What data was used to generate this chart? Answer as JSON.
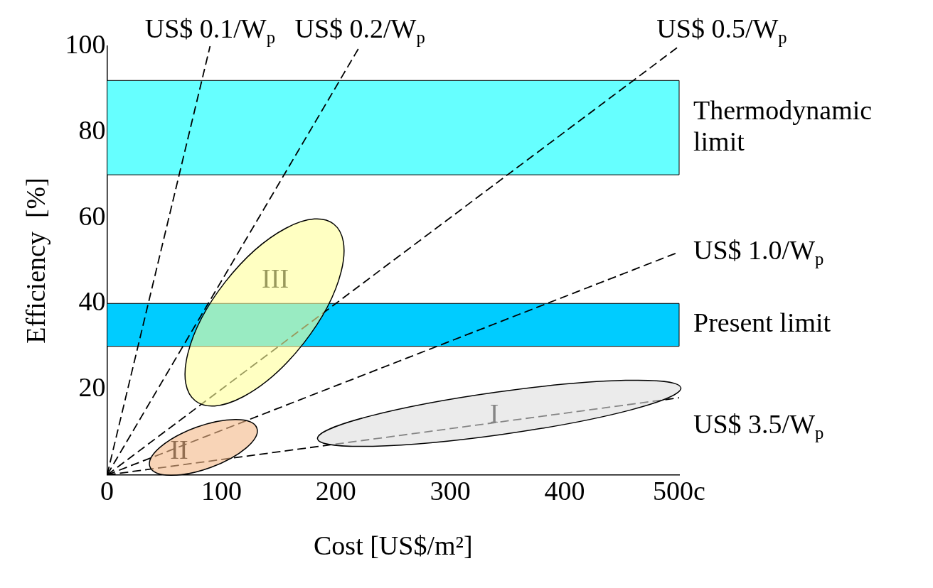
{
  "chart_data": {
    "type": "line",
    "xlabel": "Cost [US$/m²]",
    "ylabel": "Efficiency  [%]",
    "xlim": [
      0,
      500
    ],
    "ylim": [
      0,
      100
    ],
    "xticks": [
      0,
      100,
      200,
      300,
      400,
      {
        "value": 500,
        "label": "500c"
      }
    ],
    "yticks": [
      20,
      40,
      60,
      80,
      100
    ],
    "grid": false,
    "legend": false,
    "line_style": "dashed",
    "marker": "none",
    "series": [
      {
        "color": "#000000",
        "x": [
          0,
          90
        ],
        "values": [
          0,
          100
        ]
      },
      {
        "color": "#000000",
        "x": [
          0,
          221
        ],
        "values": [
          0,
          100
        ]
      },
      {
        "color": "#000000",
        "x": [
          0,
          500
        ],
        "values": [
          0,
          100
        ]
      },
      {
        "color": "#000000",
        "x": [
          0,
          500
        ],
        "values": [
          0,
          52
        ]
      },
      {
        "color": "#000000",
        "x": [
          0,
          500
        ],
        "values": [
          0,
          18
        ]
      }
    ],
    "bands": [
      {
        "axis": "y",
        "from": 70,
        "to": 92,
        "label": "Thermodynamic limit",
        "color": "#66ffff"
      },
      {
        "axis": "y",
        "from": 30,
        "to": 40,
        "label": "Present limit",
        "color": "#00ccff"
      }
    ],
    "annotations": [
      {
        "text": "US$ 0.1/W$_{p}$",
        "x": 90,
        "y": 100
      },
      {
        "text": "US$ 0.2/W$_{p}$",
        "x": 221,
        "y": 100
      },
      {
        "text": "US$ 0.5/W$_{p}$",
        "x": 500,
        "y": 100
      },
      {
        "text": "US$ 1.0/W$_{p}$",
        "x": 500,
        "y": 52
      },
      {
        "text": "US$ 3.5/W$_{p}$",
        "x": 500,
        "y": 18
      },
      "I",
      "II",
      "III"
    ]
  }
}
